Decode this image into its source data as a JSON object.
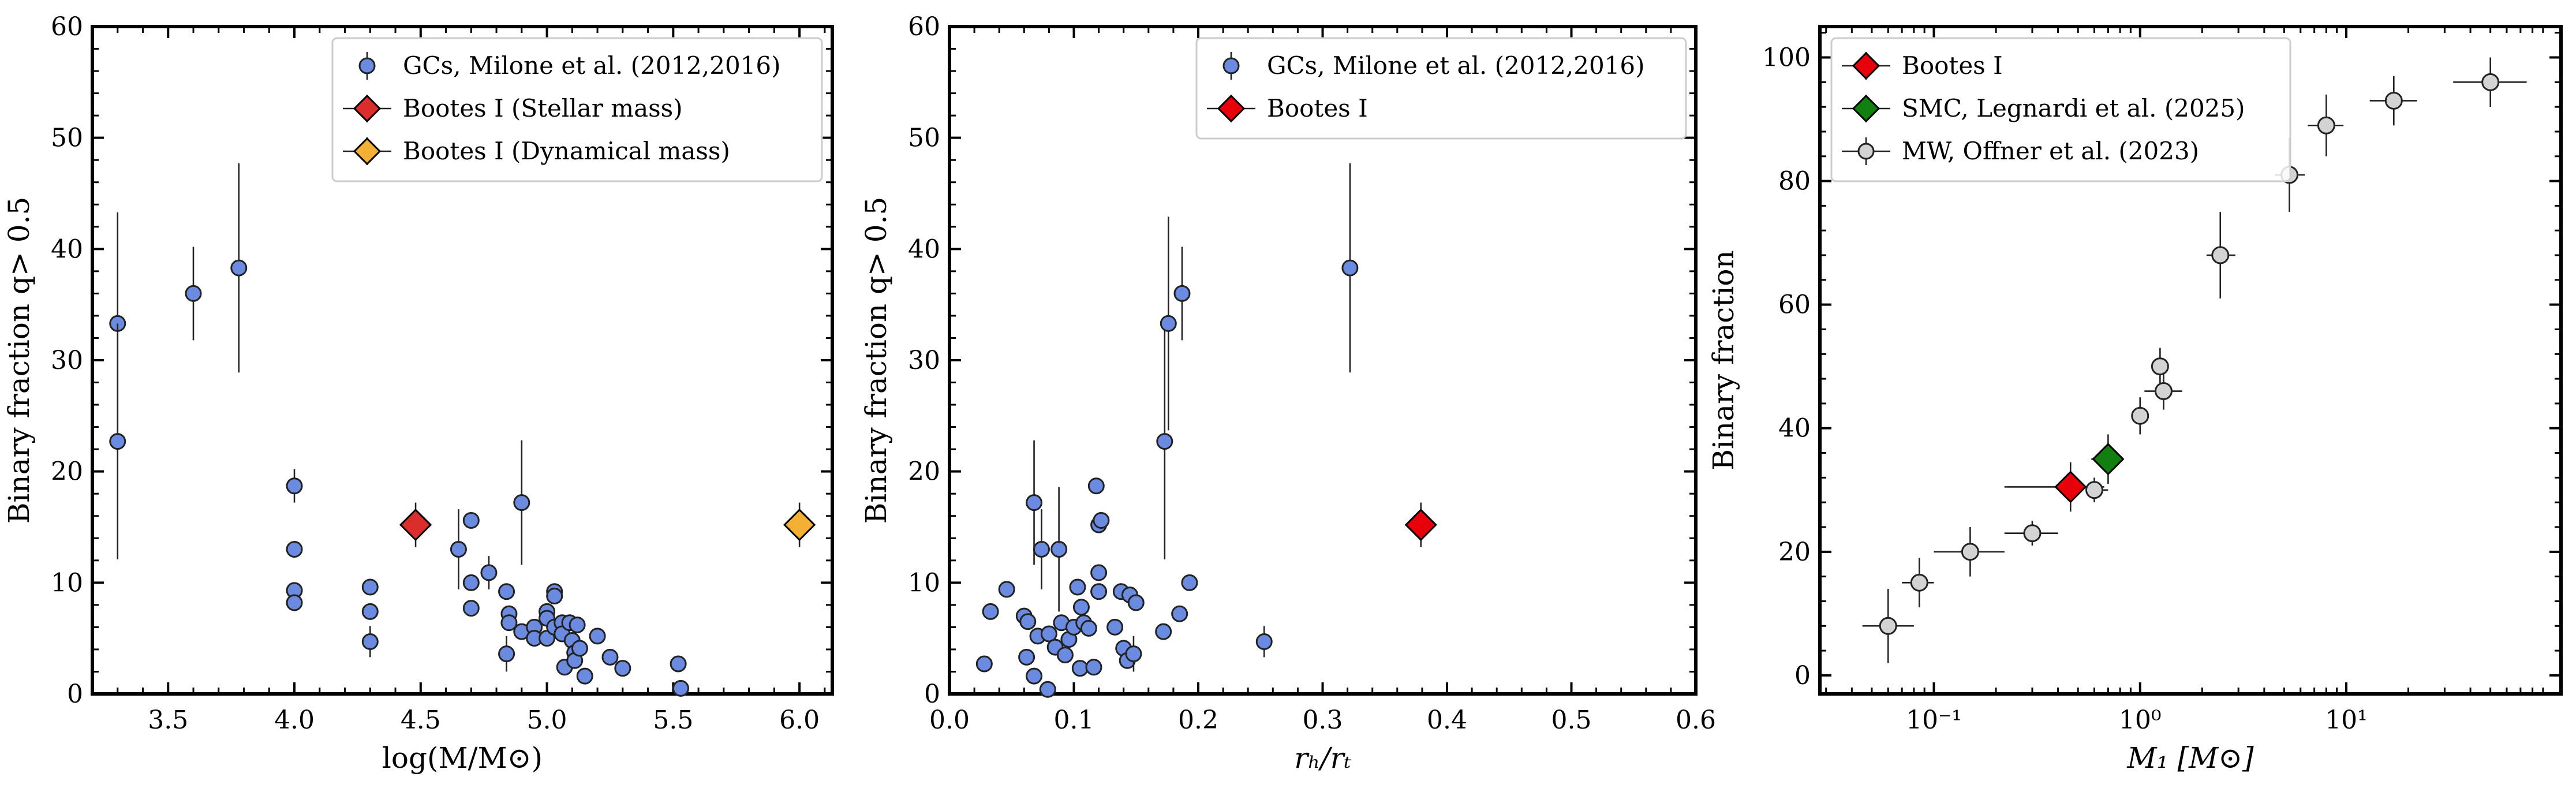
{
  "chart_data": [
    {
      "type": "scatter",
      "xlabel": "log(M/M⊙)",
      "ylabel": "Binary fraction q> 0.5",
      "xlim": [
        3.2,
        6.13
      ],
      "ylim": [
        0,
        60
      ],
      "xticks": [
        3.5,
        4.0,
        4.5,
        5.0,
        5.5,
        6.0
      ],
      "xtick_labels": [
        "3.5",
        "4.0",
        "4.5",
        "5.0",
        "5.5",
        "6.0"
      ],
      "yticks": [
        0,
        10,
        20,
        30,
        40,
        50,
        60
      ],
      "ytick_labels": [
        "0",
        "10",
        "20",
        "30",
        "40",
        "50",
        "60"
      ],
      "legend_position": "top-right",
      "series": [
        {
          "name": "GCs, Milone et al. (2012,2016)",
          "marker": "circle",
          "color": "#6b8be0",
          "points": [
            [
              3.3,
              33.3,
              10.0
            ],
            [
              3.3,
              22.7,
              10.6
            ],
            [
              3.6,
              36.0,
              4.2
            ],
            [
              3.78,
              38.3,
              9.4
            ],
            [
              4.0,
              18.7,
              1.5
            ],
            [
              4.0,
              13.0,
              0
            ],
            [
              4.0,
              9.3,
              0
            ],
            [
              4.0,
              8.2,
              0
            ],
            [
              4.3,
              9.6,
              0
            ],
            [
              4.3,
              7.4,
              0
            ],
            [
              4.3,
              4.7,
              1.4
            ],
            [
              4.65,
              13.0,
              3.6
            ],
            [
              4.7,
              15.6,
              0
            ],
            [
              4.7,
              10.0,
              0
            ],
            [
              4.7,
              7.7,
              0
            ],
            [
              4.77,
              10.9,
              1.5
            ],
            [
              4.84,
              9.2,
              0
            ],
            [
              4.85,
              7.2,
              0
            ],
            [
              4.85,
              6.4,
              0
            ],
            [
              4.84,
              3.6,
              1.6
            ],
            [
              4.9,
              17.2,
              5.6
            ],
            [
              4.9,
              5.6,
              0
            ],
            [
              4.95,
              6.0,
              0
            ],
            [
              4.95,
              5.0,
              0
            ],
            [
              5.0,
              7.4,
              0
            ],
            [
              5.0,
              6.8,
              0
            ],
            [
              5.0,
              5.0,
              0
            ],
            [
              5.03,
              9.2,
              0.7
            ],
            [
              5.03,
              8.8,
              0
            ],
            [
              5.03,
              6.0,
              0
            ],
            [
              5.06,
              6.4,
              0
            ],
            [
              5.06,
              5.4,
              0
            ],
            [
              5.07,
              2.4,
              0
            ],
            [
              5.09,
              6.4,
              0
            ],
            [
              5.1,
              4.8,
              0
            ],
            [
              5.11,
              3.7,
              0
            ],
            [
              5.11,
              3.0,
              0
            ],
            [
              5.12,
              6.2,
              0
            ],
            [
              5.13,
              4.1,
              0
            ],
            [
              5.15,
              1.6,
              0
            ],
            [
              5.2,
              5.2,
              0
            ],
            [
              5.25,
              3.3,
              0
            ],
            [
              5.3,
              2.3,
              0
            ],
            [
              5.52,
              2.7,
              0
            ],
            [
              5.53,
              0.5,
              0
            ]
          ]
        },
        {
          "name": "Bootes I (Stellar mass)",
          "marker": "diamond",
          "color": "#dc2d2d",
          "points": [
            [
              4.48,
              15.2,
              2.0
            ]
          ]
        },
        {
          "name": "Bootes I (Dynamical mass)",
          "marker": "diamond",
          "color": "#f4b035",
          "points": [
            [
              6.0,
              15.2,
              2.0
            ]
          ]
        }
      ]
    },
    {
      "type": "scatter",
      "xlabel": "rₕ/rₜ",
      "ylabel": "Binary fraction q> 0.5",
      "xlim": [
        0.0,
        0.6
      ],
      "ylim": [
        0,
        60
      ],
      "xticks": [
        0.0,
        0.1,
        0.2,
        0.3,
        0.4,
        0.5,
        0.6
      ],
      "xtick_labels": [
        "0.0",
        "0.1",
        "0.2",
        "0.3",
        "0.4",
        "0.5",
        "0.6"
      ],
      "yticks": [
        0,
        10,
        20,
        30,
        40,
        50,
        60
      ],
      "ytick_labels": [
        "0",
        "10",
        "20",
        "30",
        "40",
        "50",
        "60"
      ],
      "legend_position": "top-right",
      "series": [
        {
          "name": "GCs, Milone et al. (2012,2016)",
          "marker": "circle",
          "color": "#6b8be0",
          "points": [
            [
              0.028,
              2.7,
              0
            ],
            [
              0.033,
              7.4,
              0
            ],
            [
              0.046,
              9.4,
              0
            ],
            [
              0.06,
              7.0,
              0
            ],
            [
              0.063,
              6.5,
              0
            ],
            [
              0.062,
              3.3,
              0
            ],
            [
              0.068,
              17.2,
              5.6
            ],
            [
              0.068,
              1.6,
              0
            ],
            [
              0.071,
              5.2,
              0
            ],
            [
              0.074,
              13.0,
              3.6
            ],
            [
              0.079,
              0.4,
              0
            ],
            [
              0.08,
              5.4,
              0
            ],
            [
              0.085,
              4.2,
              0
            ],
            [
              0.088,
              13.0,
              5.6
            ],
            [
              0.09,
              6.4,
              0
            ],
            [
              0.093,
              3.5,
              0
            ],
            [
              0.096,
              4.9,
              0
            ],
            [
              0.1,
              6.0,
              0
            ],
            [
              0.103,
              9.6,
              0
            ],
            [
              0.106,
              7.8,
              0
            ],
            [
              0.108,
              6.4,
              0
            ],
            [
              0.105,
              2.3,
              0
            ],
            [
              0.112,
              5.9,
              0
            ],
            [
              0.116,
              2.4,
              0
            ],
            [
              0.118,
              18.7,
              0
            ],
            [
              0.12,
              15.2,
              0
            ],
            [
              0.12,
              10.9,
              0
            ],
            [
              0.12,
              9.2,
              0
            ],
            [
              0.122,
              15.6,
              0
            ],
            [
              0.133,
              6.0,
              0
            ],
            [
              0.138,
              9.2,
              0
            ],
            [
              0.14,
              4.1,
              0
            ],
            [
              0.143,
              3.0,
              0
            ],
            [
              0.145,
              8.9,
              0
            ],
            [
              0.15,
              8.2,
              0
            ],
            [
              0.148,
              3.6,
              1.6
            ],
            [
              0.172,
              5.6,
              0
            ],
            [
              0.173,
              22.7,
              10.6
            ],
            [
              0.176,
              33.3,
              9.6
            ],
            [
              0.185,
              7.2,
              0
            ],
            [
              0.187,
              36.0,
              4.2
            ],
            [
              0.193,
              10.0,
              0
            ],
            [
              0.253,
              4.7,
              1.4
            ],
            [
              0.322,
              38.3,
              9.4
            ]
          ]
        },
        {
          "name": "Bootes I",
          "marker": "diamond",
          "color": "#e8000b",
          "points": [
            [
              0.379,
              15.2,
              2.0
            ]
          ]
        }
      ]
    },
    {
      "type": "scatter",
      "xlabel": "M₁ [M⊙]",
      "ylabel": "Binary fraction",
      "xscale": "log",
      "xlim": [
        0.028,
        110
      ],
      "ylim": [
        -3,
        105
      ],
      "xticks": [
        0.1,
        1,
        10
      ],
      "xtick_labels": [
        "10⁻¹",
        "10⁰",
        "10¹"
      ],
      "yticks": [
        0,
        20,
        40,
        60,
        80,
        100
      ],
      "ytick_labels": [
        "0",
        "20",
        "40",
        "60",
        "80",
        "100"
      ],
      "legend_position": "top-left",
      "series": [
        {
          "name": "Bootes I",
          "marker": "diamond",
          "color": "#e8000b",
          "points": [
            [
              0.46,
              30.5,
              0.22,
              0.67,
              4.0
            ]
          ]
        },
        {
          "name": "SMC, Legnardi et al. (2025)",
          "marker": "diamond",
          "color": "#118011",
          "points": [
            [
              0.7,
              35.0,
              0.58,
              0.82,
              4.0
            ]
          ]
        },
        {
          "name": "MW, Offner et al. (2023)",
          "marker": "circle",
          "color": "#d3d3d3",
          "points": [
            [
              0.06,
              8.0,
              0.045,
              0.08,
              6.0
            ],
            [
              0.085,
              15.0,
              0.07,
              0.1,
              4.0
            ],
            [
              0.15,
              20.0,
              0.1,
              0.22,
              4.0
            ],
            [
              0.3,
              23.0,
              0.22,
              0.4,
              2.0
            ],
            [
              0.6,
              30.0,
              0.55,
              0.7,
              2.0
            ],
            [
              1.0,
              42.0,
              0.93,
              1.07,
              3.0
            ],
            [
              1.25,
              50.0,
              1.2,
              1.3,
              3.0
            ],
            [
              1.3,
              46.0,
              1.05,
              1.6,
              3.0
            ],
            [
              2.45,
              68.0,
              2.1,
              2.9,
              7.0
            ],
            [
              5.3,
              81.0,
              4.5,
              6.3,
              6.0
            ],
            [
              8.0,
              89.0,
              6.5,
              9.7,
              5.0
            ],
            [
              17.0,
              93.0,
              13.0,
              22.0,
              4.0
            ],
            [
              50.0,
              96.0,
              33.0,
              75.0,
              4.0
            ]
          ]
        }
      ]
    }
  ]
}
